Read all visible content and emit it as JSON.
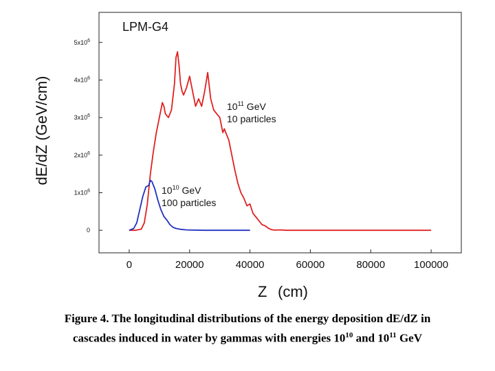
{
  "chart_data": {
    "type": "line",
    "title": "LPM-G4",
    "xlabel": "Z",
    "xlabel_unit": "(cm)",
    "ylabel": "dE/dZ  (GeV/cm)",
    "xlim": [
      -10000,
      110000
    ],
    "ylim": [
      -600000,
      5800000
    ],
    "x_ticks": [
      0,
      20000,
      40000,
      60000,
      80000,
      100000
    ],
    "x_tick_labels": [
      "0",
      "20000",
      "40000",
      "60000",
      "80000",
      "100000"
    ],
    "y_ticks": [
      0,
      1000000,
      2000000,
      3000000,
      4000000,
      5000000
    ],
    "y_tick_labels": [
      {
        "base": "0",
        "exp": ""
      },
      {
        "base": "1x10",
        "exp": "6"
      },
      {
        "base": "2x10",
        "exp": "6"
      },
      {
        "base": "3x10",
        "exp": "6"
      },
      {
        "base": "4x10",
        "exp": "6"
      },
      {
        "base": "5x10",
        "exp": "6"
      }
    ],
    "annotations": [
      {
        "series": 0,
        "line1_base": "10",
        "line1_exp": "11",
        "line1_rest": " GeV",
        "line2": "10 particles"
      },
      {
        "series": 1,
        "line1_base": "10",
        "line1_exp": "10",
        "line1_rest": " GeV",
        "line2": "100 particles"
      }
    ],
    "series": [
      {
        "color": "#e02020",
        "x": [
          0,
          2000,
          4000,
          5000,
          6000,
          7000,
          8000,
          9000,
          10000,
          11000,
          11500,
          12000,
          13000,
          14000,
          15000,
          15500,
          16000,
          16500,
          17000,
          17500,
          18000,
          19000,
          20000,
          21000,
          22000,
          23000,
          24000,
          25000,
          26000,
          27000,
          28000,
          29000,
          30000,
          31000,
          31500,
          32000,
          33000,
          34000,
          35000,
          36000,
          37000,
          38000,
          39000,
          40000,
          41000,
          42000,
          43000,
          44000,
          45000,
          46000,
          47000,
          48000,
          50000,
          52000,
          54000,
          60000,
          80000,
          100000
        ],
        "values": [
          0,
          0,
          30000,
          200000,
          700000,
          1500000,
          2100000,
          2600000,
          3000000,
          3400000,
          3300000,
          3100000,
          3000000,
          3200000,
          3900000,
          4600000,
          4750000,
          4400000,
          3900000,
          3700000,
          3600000,
          3800000,
          4100000,
          3700000,
          3300000,
          3500000,
          3300000,
          3700000,
          4200000,
          3500000,
          3200000,
          3100000,
          3000000,
          2600000,
          2700000,
          2600000,
          2400000,
          2000000,
          1600000,
          1250000,
          1000000,
          850000,
          650000,
          700000,
          450000,
          350000,
          250000,
          150000,
          120000,
          60000,
          20000,
          5000,
          10000,
          0,
          0,
          0,
          0,
          0
        ]
      },
      {
        "color": "#1f2fbf",
        "x": [
          0,
          1500,
          2500,
          3500,
          4500,
          5500,
          6500,
          7000,
          7500,
          8500,
          9500,
          10500,
          11500,
          12500,
          13500,
          14500,
          15500,
          17000,
          19000,
          21000,
          25000,
          30000,
          35000,
          40000
        ],
        "values": [
          0,
          50000,
          200000,
          550000,
          900000,
          1150000,
          1200000,
          1330000,
          1300000,
          1100000,
          800000,
          550000,
          370000,
          270000,
          150000,
          80000,
          50000,
          25000,
          10000,
          5000,
          0,
          0,
          0,
          0
        ]
      }
    ]
  },
  "caption": {
    "line1": "Figure 4.  The longitudinal distributions of the energy deposition dE/dZ in",
    "line2_pre": "cascades induced in water by gammas with energies 10",
    "line2_exp1": "10",
    "line2_mid": " and 10",
    "line2_exp2": "11",
    "line2_post": " GeV"
  }
}
